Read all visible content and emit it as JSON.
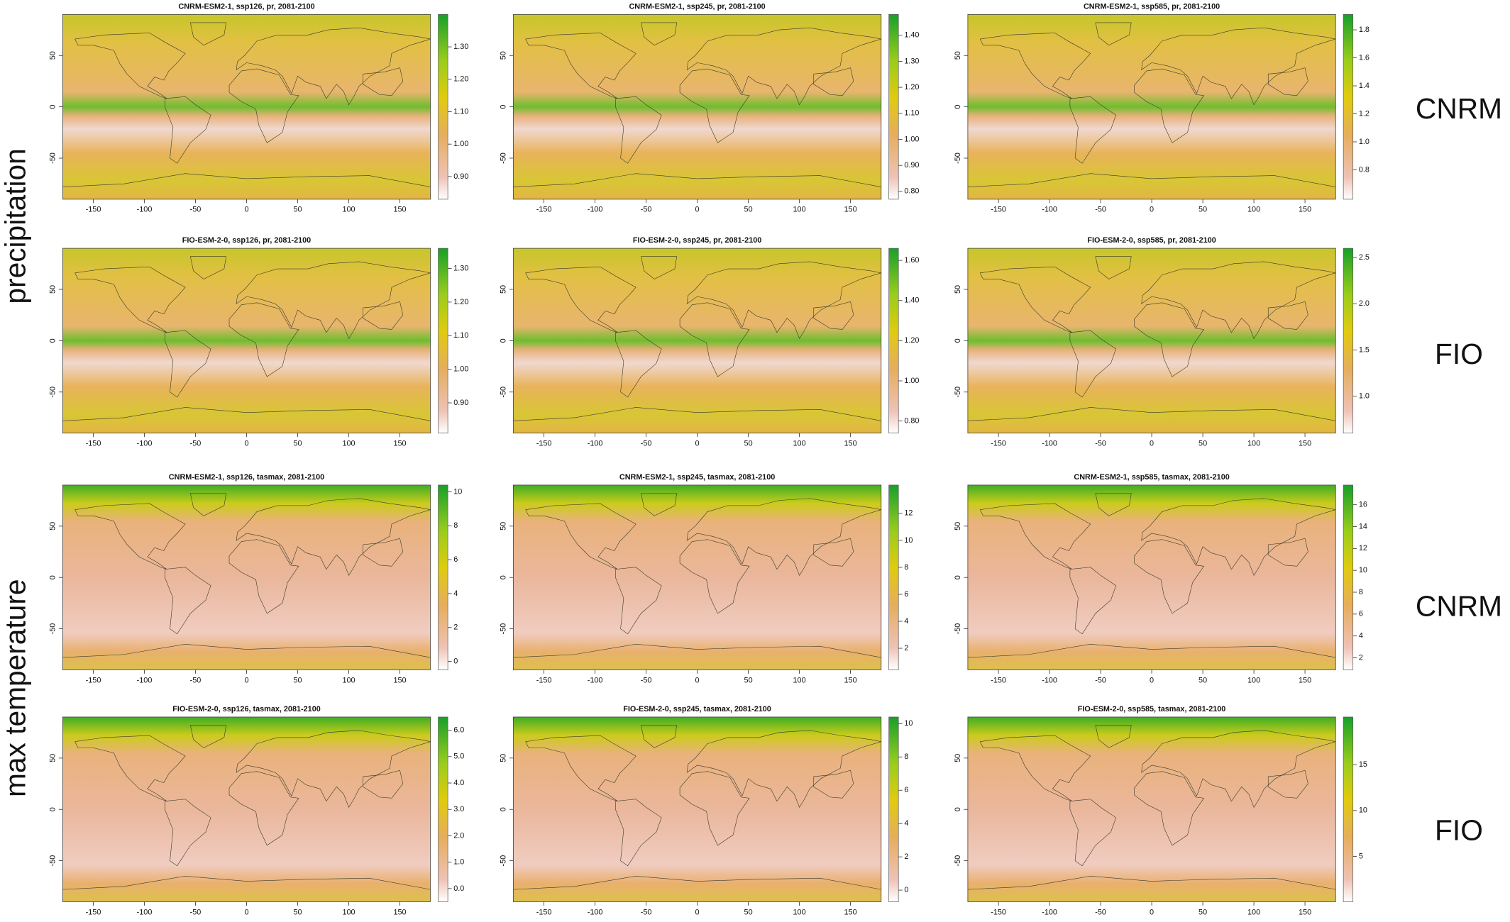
{
  "row_labels": [
    "precipitation",
    "max temperature"
  ],
  "model_labels": [
    "CNRM",
    "FIO",
    "CNRM",
    "FIO"
  ],
  "xlim": [
    -180,
    180
  ],
  "ylim": [
    -90,
    90
  ],
  "xticks": [
    -150,
    -100,
    -50,
    0,
    50,
    100,
    150
  ],
  "yticks": [
    -50,
    0,
    50
  ],
  "panels": [
    {
      "title": "CNRM-ESM2-1, ssp126, pr, 2081-2100",
      "clim": [
        0.83,
        1.4
      ],
      "cticks": [
        {
          "value": 0.9,
          "label": "0.90"
        },
        {
          "value": 1.0,
          "label": "1.00"
        },
        {
          "value": 1.1,
          "label": "1.10"
        },
        {
          "value": 1.2,
          "label": "1.20"
        },
        {
          "value": 1.3,
          "label": "1.30"
        }
      ]
    },
    {
      "title": "CNRM-ESM2-1, ssp245, pr, 2081-2100",
      "clim": [
        0.77,
        1.48
      ],
      "cticks": [
        {
          "value": 0.8,
          "label": "0.80"
        },
        {
          "value": 0.9,
          "label": "0.90"
        },
        {
          "value": 1.0,
          "label": "1.00"
        },
        {
          "value": 1.1,
          "label": "1.10"
        },
        {
          "value": 1.2,
          "label": "1.20"
        },
        {
          "value": 1.3,
          "label": "1.30"
        },
        {
          "value": 1.4,
          "label": "1.40"
        }
      ]
    },
    {
      "title": "CNRM-ESM2-1, ssp585, pr, 2081-2100",
      "clim": [
        0.59,
        1.91
      ],
      "cticks": [
        0.8,
        {
          "value": 1.0,
          "label": "1.0"
        },
        1.2,
        1.4,
        1.6,
        1.8
      ]
    },
    {
      "title": "FIO-ESM-2-0, ssp126, pr, 2081-2100",
      "clim": [
        0.81,
        1.36
      ],
      "cticks": [
        {
          "value": 0.9,
          "label": "0.90"
        },
        {
          "value": 1.0,
          "label": "1.00"
        },
        {
          "value": 1.1,
          "label": "1.10"
        },
        {
          "value": 1.2,
          "label": "1.20"
        },
        {
          "value": 1.3,
          "label": "1.30"
        }
      ]
    },
    {
      "title": "FIO-ESM-2-0, ssp245, pr, 2081-2100",
      "clim": [
        0.74,
        1.66
      ],
      "cticks": [
        {
          "value": 0.8,
          "label": "0.80"
        },
        {
          "value": 1.0,
          "label": "1.00"
        },
        {
          "value": 1.2,
          "label": "1.20"
        },
        {
          "value": 1.4,
          "label": "1.40"
        },
        {
          "value": 1.6,
          "label": "1.60"
        }
      ]
    },
    {
      "title": "FIO-ESM-2-0, ssp585, pr, 2081-2100",
      "clim": [
        0.6,
        2.6
      ],
      "cticks": [
        {
          "value": 1.0,
          "label": "1.0"
        },
        1.5,
        {
          "value": 2.0,
          "label": "2.0"
        },
        2.5
      ]
    },
    {
      "title": "CNRM-ESM2-1, ssp126, tasmax, 2081-2100",
      "clim": [
        -0.5,
        10.4
      ],
      "cticks": [
        0,
        2,
        4,
        6,
        8,
        10
      ]
    },
    {
      "title": "CNRM-ESM2-1, ssp245, tasmax, 2081-2100",
      "clim": [
        0.4,
        14.1
      ],
      "cticks": [
        2,
        4,
        6,
        8,
        10,
        12
      ]
    },
    {
      "title": "CNRM-ESM2-1, ssp585, tasmax, 2081-2100",
      "clim": [
        0.9,
        17.8
      ],
      "cticks": [
        2,
        4,
        6,
        8,
        10,
        12,
        14,
        16
      ]
    },
    {
      "title": "FIO-ESM-2-0, ssp126, tasmax, 2081-2100",
      "clim": [
        -0.5,
        6.5
      ],
      "cticks": [
        {
          "value": 0,
          "label": "0.0"
        },
        {
          "value": 1,
          "label": "1.0"
        },
        {
          "value": 2,
          "label": "2.0"
        },
        {
          "value": 3,
          "label": "3.0"
        },
        {
          "value": 4,
          "label": "4.0"
        },
        {
          "value": 5,
          "label": "5.0"
        },
        {
          "value": 6,
          "label": "6.0"
        }
      ]
    },
    {
      "title": "FIO-ESM-2-0, ssp245, tasmax, 2081-2100",
      "clim": [
        -0.7,
        10.4
      ],
      "cticks": [
        0,
        2,
        4,
        6,
        8,
        10
      ]
    },
    {
      "title": "FIO-ESM-2-0, ssp585, tasmax, 2081-2100",
      "clim": [
        0.05,
        20.2
      ],
      "cticks": [
        5,
        10,
        15
      ]
    }
  ]
}
